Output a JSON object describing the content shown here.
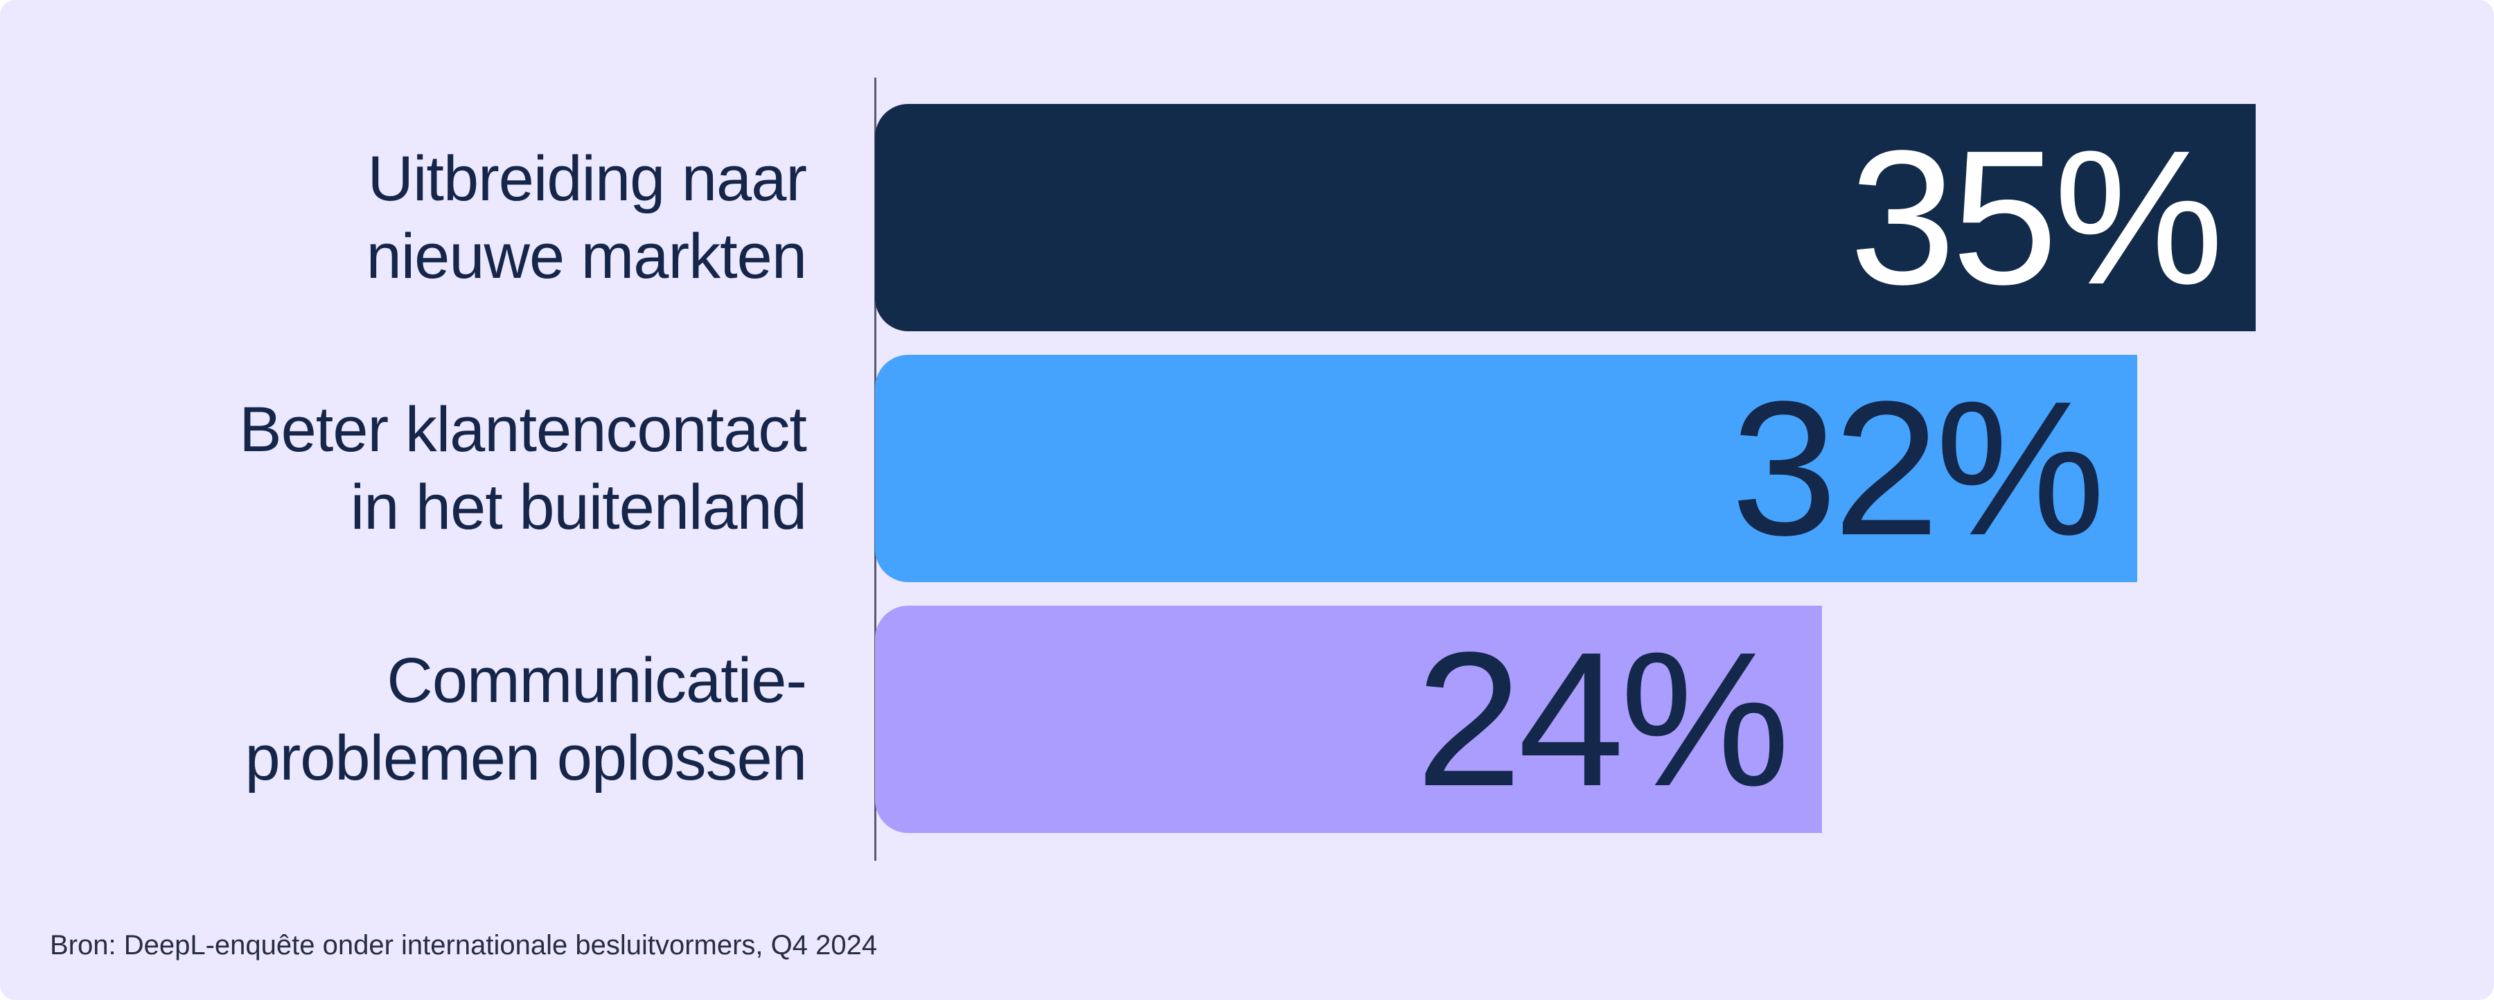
{
  "chart_data": {
    "type": "bar",
    "orientation": "horizontal",
    "categories": [
      [
        "Uitbreiding naar",
        "nieuwe markten"
      ],
      [
        "Beter klantencontact",
        "in het buitenland"
      ],
      [
        "Communicatie-",
        "problemen oplossen"
      ]
    ],
    "values": [
      35,
      32,
      24
    ],
    "value_labels": [
      "35%",
      "32%",
      "24%"
    ],
    "xlim": [
      0,
      35
    ],
    "grid": false,
    "legend": "none",
    "colors": {
      "bars": [
        "#132b4a",
        "#45a2fd",
        "#aa9dfd"
      ],
      "value_text": [
        "#ffffff",
        "#13284a",
        "#13284a"
      ],
      "background": "#ece8fd"
    }
  },
  "footer": {
    "source": "Bron: DeepL-enquête onder internationale besluitvormers, Q4 2024"
  }
}
